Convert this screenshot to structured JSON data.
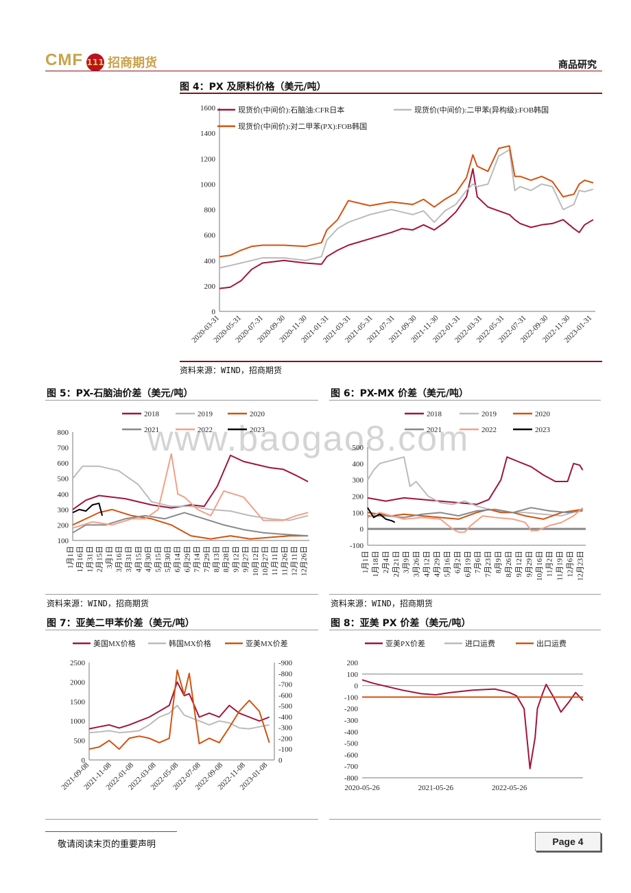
{
  "header": {
    "logo_text": "CMF",
    "logo_badge": "111",
    "logo_cn": "招商期货",
    "dept": "商品研究"
  },
  "watermark": "www.baogao8.com",
  "footer": {
    "note": "敬请阅读末页的重要声明",
    "page": "Page  4"
  },
  "colors": {
    "dark_red": "#a0143c",
    "gray": "#bbbbbb",
    "orange": "#d2520f",
    "dark_gray": "#888888",
    "salmon": "#f2a088",
    "black": "#000000",
    "accent": "#8a1018"
  },
  "figures": {
    "f4": {
      "title": "图 4：PX 及原料价格（美元/吨）",
      "source": "资料来源：WIND，招商期货"
    },
    "f5": {
      "title": "图 5：PX-石脑油价差（美元/吨）",
      "source": "资料来源：WIND，招商期货"
    },
    "f6": {
      "title": "图 6：PX-MX 价差（美元/吨）",
      "source": "资料来源：WIND，招商期货"
    },
    "f7": {
      "title": "图 7：亚美二甲苯价差（美元/吨）"
    },
    "f8": {
      "title": "图 8：亚美 PX 价差（美元/吨）"
    }
  },
  "chart_data": [
    {
      "id": "f4",
      "type": "line",
      "ylim": [
        0,
        1600
      ],
      "yticks": [
        0,
        200,
        400,
        600,
        800,
        1000,
        1200,
        1400,
        1600
      ],
      "xlim": [
        0,
        35
      ],
      "xticks": [
        "2020-03-31",
        "2020-05-31",
        "2020-07-31",
        "2020-09-30",
        "2020-11-30",
        "2021-01-31",
        "2021-03-31",
        "2021-05-31",
        "2021-07-31",
        "2021-09-30",
        "2021-11-30",
        "2022-01-31",
        "2022-03-31",
        "2022-05-31",
        "2022-07-31",
        "2022-09-30",
        "2022-11-30",
        "2023-01-31"
      ],
      "legend_position": "top",
      "series": [
        {
          "name": "现货价(中间价):石脑油:CFR日本",
          "color": "#a0143c",
          "x": [
            0,
            1,
            2,
            3,
            4,
            6,
            8,
            9.5,
            10,
            11,
            12,
            14,
            16,
            17,
            18,
            19,
            20,
            21,
            22,
            23,
            23.6,
            24,
            25,
            26,
            27,
            27.5,
            28,
            29,
            30,
            31,
            32,
            33,
            33.5,
            34,
            34.8
          ],
          "y": [
            180,
            190,
            240,
            330,
            380,
            400,
            380,
            370,
            430,
            480,
            520,
            570,
            620,
            650,
            640,
            680,
            640,
            700,
            780,
            900,
            1120,
            900,
            820,
            790,
            760,
            720,
            690,
            660,
            680,
            690,
            720,
            650,
            620,
            680,
            720
          ]
        },
        {
          "name": "现货价(中间价):二甲苯(异构级):FOB韩国",
          "color": "#bbbbbb",
          "x": [
            0,
            1,
            2,
            3,
            4,
            6,
            8,
            9.5,
            10,
            11,
            12,
            14,
            16,
            17,
            18,
            19,
            20,
            21,
            22,
            23,
            23.6,
            24,
            25,
            26,
            27,
            27.5,
            28,
            29,
            30,
            31,
            32,
            33,
            33.5,
            34,
            34.8
          ],
          "y": [
            340,
            360,
            380,
            400,
            420,
            420,
            400,
            430,
            560,
            650,
            700,
            760,
            800,
            780,
            760,
            790,
            700,
            790,
            840,
            950,
            1000,
            980,
            1000,
            1220,
            1270,
            950,
            980,
            950,
            1000,
            980,
            800,
            840,
            950,
            940,
            960
          ]
        },
        {
          "name": "现货价(中间价):对二甲苯(PX):FOB韩国",
          "color": "#d2520f",
          "x": [
            0,
            1,
            2,
            3,
            4,
            6,
            8,
            9.5,
            10,
            11,
            12,
            14,
            16,
            17,
            18,
            19,
            20,
            21,
            22,
            23,
            23.6,
            24,
            25,
            26,
            27,
            27.5,
            28,
            29,
            30,
            31,
            32,
            33,
            33.5,
            34,
            34.8
          ],
          "y": [
            430,
            440,
            480,
            510,
            520,
            520,
            510,
            540,
            640,
            720,
            870,
            830,
            860,
            850,
            840,
            880,
            820,
            880,
            930,
            1050,
            1230,
            1140,
            1100,
            1280,
            1300,
            1060,
            1060,
            1030,
            1060,
            1020,
            900,
            920,
            1000,
            1030,
            1010
          ]
        }
      ]
    },
    {
      "id": "f5",
      "type": "line",
      "ylim": [
        100,
        800
      ],
      "yticks": [
        100,
        200,
        300,
        400,
        500,
        600,
        700,
        800
      ],
      "xlim": [
        0,
        360
      ],
      "xticks": [
        "1月1日",
        "1月16日",
        "1月31日",
        "2月15日",
        "3月1日",
        "3月16日",
        "3月31日",
        "4月15日",
        "4月30日",
        "5月15日",
        "5月30日",
        "6月14日",
        "6月29日",
        "7月14日",
        "7月29日",
        "8月13日",
        "8月28日",
        "9月12日",
        "9月27日",
        "10月12日",
        "10月27日",
        "11月11日",
        "11月26日",
        "12月11日",
        "12月26日"
      ],
      "legend_position": "top",
      "series": [
        {
          "name": "2018",
          "color": "#a0143c",
          "x": [
            0,
            20,
            40,
            80,
            120,
            150,
            180,
            200,
            220,
            240,
            260,
            280,
            300,
            320,
            340,
            358
          ],
          "y": [
            300,
            360,
            390,
            370,
            330,
            310,
            330,
            320,
            450,
            650,
            610,
            590,
            570,
            560,
            520,
            480
          ]
        },
        {
          "name": "2019",
          "color": "#bbbbbb",
          "x": [
            0,
            15,
            40,
            70,
            100,
            120,
            150,
            180,
            210,
            240,
            270,
            300,
            330,
            358
          ],
          "y": [
            500,
            580,
            580,
            550,
            460,
            350,
            320,
            320,
            300,
            290,
            260,
            240,
            230,
            260
          ]
        },
        {
          "name": "2020",
          "color": "#d2520f",
          "x": [
            0,
            20,
            40,
            60,
            90,
            120,
            150,
            180,
            210,
            240,
            270,
            300,
            330,
            358
          ],
          "y": [
            200,
            240,
            280,
            300,
            260,
            240,
            200,
            130,
            110,
            130,
            110,
            120,
            130,
            130
          ]
        },
        {
          "name": "2021",
          "color": "#888888",
          "x": [
            0,
            20,
            50,
            80,
            110,
            140,
            170,
            200,
            230,
            260,
            290,
            320,
            358
          ],
          "y": [
            150,
            200,
            200,
            240,
            260,
            240,
            280,
            240,
            200,
            170,
            150,
            140,
            130
          ]
        },
        {
          "name": "2022",
          "color": "#f2a088",
          "x": [
            0,
            30,
            60,
            90,
            110,
            130,
            150,
            160,
            170,
            190,
            210,
            230,
            260,
            290,
            320,
            340,
            358
          ],
          "y": [
            180,
            220,
            200,
            240,
            240,
            300,
            660,
            400,
            380,
            300,
            260,
            420,
            380,
            230,
            230,
            260,
            280
          ]
        },
        {
          "name": "2023",
          "color": "#000000",
          "x": [
            0,
            10,
            20,
            30,
            40,
            45
          ],
          "y": [
            280,
            300,
            290,
            330,
            340,
            260
          ]
        }
      ]
    },
    {
      "id": "f6",
      "type": "line",
      "ylim": [
        -100,
        500
      ],
      "yticks": [
        -100,
        0,
        100,
        200,
        300,
        400,
        500
      ],
      "xlim": [
        0,
        360
      ],
      "xticks": [
        "1月1日",
        "1月18日",
        "2月4日",
        "2月21日",
        "3月9日",
        "3月26日",
        "4月12日",
        "4月29日",
        "5月16日",
        "6月2日",
        "6月19日",
        "7月6日",
        "7月23日",
        "8月9日",
        "8月26日",
        "9月12日",
        "9月29日",
        "10月16日",
        "11月2日",
        "11月19日",
        "12月6日",
        "12月23日"
      ],
      "legend_position": "top",
      "series": [
        {
          "name": "2018",
          "color": "#a0143c",
          "x": [
            0,
            30,
            60,
            90,
            120,
            150,
            180,
            200,
            220,
            230,
            250,
            270,
            290,
            310,
            330,
            340,
            350,
            355
          ],
          "y": [
            190,
            170,
            190,
            180,
            170,
            160,
            150,
            180,
            300,
            440,
            410,
            380,
            330,
            290,
            290,
            400,
            390,
            360
          ]
        },
        {
          "name": "2019",
          "color": "#bbbbbb",
          "x": [
            0,
            10,
            20,
            40,
            60,
            70,
            80,
            100,
            120,
            140,
            160,
            180,
            200,
            230,
            260,
            290,
            320,
            355
          ],
          "y": [
            300,
            360,
            400,
            420,
            440,
            260,
            290,
            200,
            160,
            150,
            170,
            140,
            120,
            100,
            100,
            90,
            80,
            120
          ]
        },
        {
          "name": "2020",
          "color": "#d2520f",
          "x": [
            0,
            20,
            40,
            60,
            90,
            120,
            150,
            180,
            200,
            220,
            240,
            260,
            290,
            320,
            355
          ],
          "y": [
            100,
            90,
            80,
            90,
            80,
            70,
            60,
            100,
            120,
            100,
            100,
            80,
            60,
            100,
            120
          ]
        },
        {
          "name": "2021",
          "color": "#888888",
          "x": [
            0,
            30,
            60,
            90,
            120,
            150,
            180,
            210,
            240,
            270,
            300,
            330,
            355
          ],
          "y": [
            80,
            80,
            70,
            90,
            100,
            80,
            110,
            120,
            100,
            130,
            110,
            100,
            110
          ]
        },
        {
          "name": "2022",
          "color": "#f2a088",
          "x": [
            0,
            20,
            40,
            60,
            90,
            120,
            140,
            150,
            160,
            170,
            190,
            210,
            240,
            260,
            270,
            280,
            300,
            320,
            340,
            355
          ],
          "y": [
            70,
            100,
            80,
            60,
            70,
            60,
            0,
            -20,
            -20,
            20,
            80,
            70,
            60,
            40,
            -10,
            -10,
            20,
            40,
            80,
            130
          ]
        },
        {
          "name": "2023",
          "color": "#000000",
          "x": [
            0,
            10,
            20,
            30,
            40,
            45
          ],
          "y": [
            130,
            70,
            90,
            60,
            50,
            40
          ]
        }
      ]
    },
    {
      "id": "f7",
      "type": "line",
      "ylim_left": [
        0,
        2500
      ],
      "yticks_left": [
        0,
        500,
        1000,
        1500,
        2000,
        2500
      ],
      "ylim_right": [
        -900,
        0
      ],
      "yticks_right": [
        0,
        -100,
        -200,
        -300,
        -400,
        -500,
        -600,
        -700,
        -800,
        -900
      ],
      "xlim": [
        0,
        18.5
      ],
      "xticks": [
        "2021-09-08",
        "2021-11-08",
        "2022-01-08",
        "2022-03-08",
        "2022-05-08",
        "2022-07-08",
        "2022-09-08",
        "2022-11-08",
        "2023-01-08"
      ],
      "legend_position": "top",
      "series": [
        {
          "name": "美国MX价格",
          "color": "#a0143c",
          "axis": "left",
          "x": [
            0,
            1,
            2,
            3,
            4,
            5,
            6,
            7,
            8,
            8.8,
            9.5,
            10,
            11,
            12,
            13,
            14,
            15,
            16,
            17,
            18
          ],
          "y": [
            800,
            850,
            900,
            820,
            900,
            1000,
            1100,
            1250,
            1400,
            2000,
            1650,
            1700,
            1100,
            1200,
            1100,
            1400,
            1200,
            1100,
            1000,
            1100
          ]
        },
        {
          "name": "韩国MX价格",
          "color": "#bbbbbb",
          "axis": "left",
          "x": [
            0,
            1,
            2,
            3,
            4,
            5,
            6,
            7,
            8,
            8.8,
            9.5,
            10,
            11,
            12,
            13,
            14,
            15,
            16,
            17,
            18
          ],
          "y": [
            700,
            720,
            750,
            700,
            720,
            750,
            900,
            1100,
            1200,
            1400,
            1150,
            1100,
            1000,
            900,
            1000,
            950,
            820,
            800,
            850,
            900
          ]
        },
        {
          "name": "亚美MX价差",
          "color": "#d2520f",
          "axis": "right",
          "x": [
            0,
            1,
            2,
            3,
            4,
            5,
            6,
            7,
            8,
            8.8,
            9.5,
            10,
            11,
            12,
            13,
            14,
            15,
            16,
            17,
            18
          ],
          "y": [
            -100,
            -120,
            -180,
            -100,
            -200,
            -220,
            -200,
            -160,
            -200,
            -830,
            -600,
            -800,
            -150,
            -200,
            -160,
            -300,
            -450,
            -550,
            -450,
            -160
          ]
        }
      ]
    },
    {
      "id": "f8",
      "type": "line",
      "ylim": [
        -800,
        200
      ],
      "yticks": [
        -800,
        -700,
        -600,
        -500,
        -400,
        -300,
        -200,
        -100,
        0,
        100,
        200
      ],
      "xlim": [
        0,
        3
      ],
      "xticks": [
        "2020-05-26",
        "2021-05-26",
        "2022-05-26"
      ],
      "legend_position": "top",
      "series": [
        {
          "name": "亚美PX价差",
          "color": "#a0143c",
          "x": [
            0,
            0.15,
            0.35,
            0.55,
            0.8,
            1.0,
            1.2,
            1.5,
            1.8,
            2.0,
            2.1,
            2.2,
            2.28,
            2.35,
            2.38,
            2.45,
            2.5,
            2.6,
            2.7,
            2.8,
            2.9,
            3.0
          ],
          "y": [
            50,
            20,
            -10,
            -40,
            -70,
            -80,
            -60,
            -40,
            -30,
            -60,
            -90,
            -200,
            -720,
            -450,
            -200,
            -70,
            10,
            -100,
            -230,
            -150,
            -60,
            -130
          ]
        },
        {
          "name": "进口运费",
          "color": "#bbbbbb",
          "x": [
            0,
            3
          ],
          "y": [
            100,
            100
          ]
        },
        {
          "name": "出口运费",
          "color": "#d2520f",
          "x": [
            0,
            3
          ],
          "y": [
            -100,
            -100
          ]
        }
      ]
    }
  ]
}
